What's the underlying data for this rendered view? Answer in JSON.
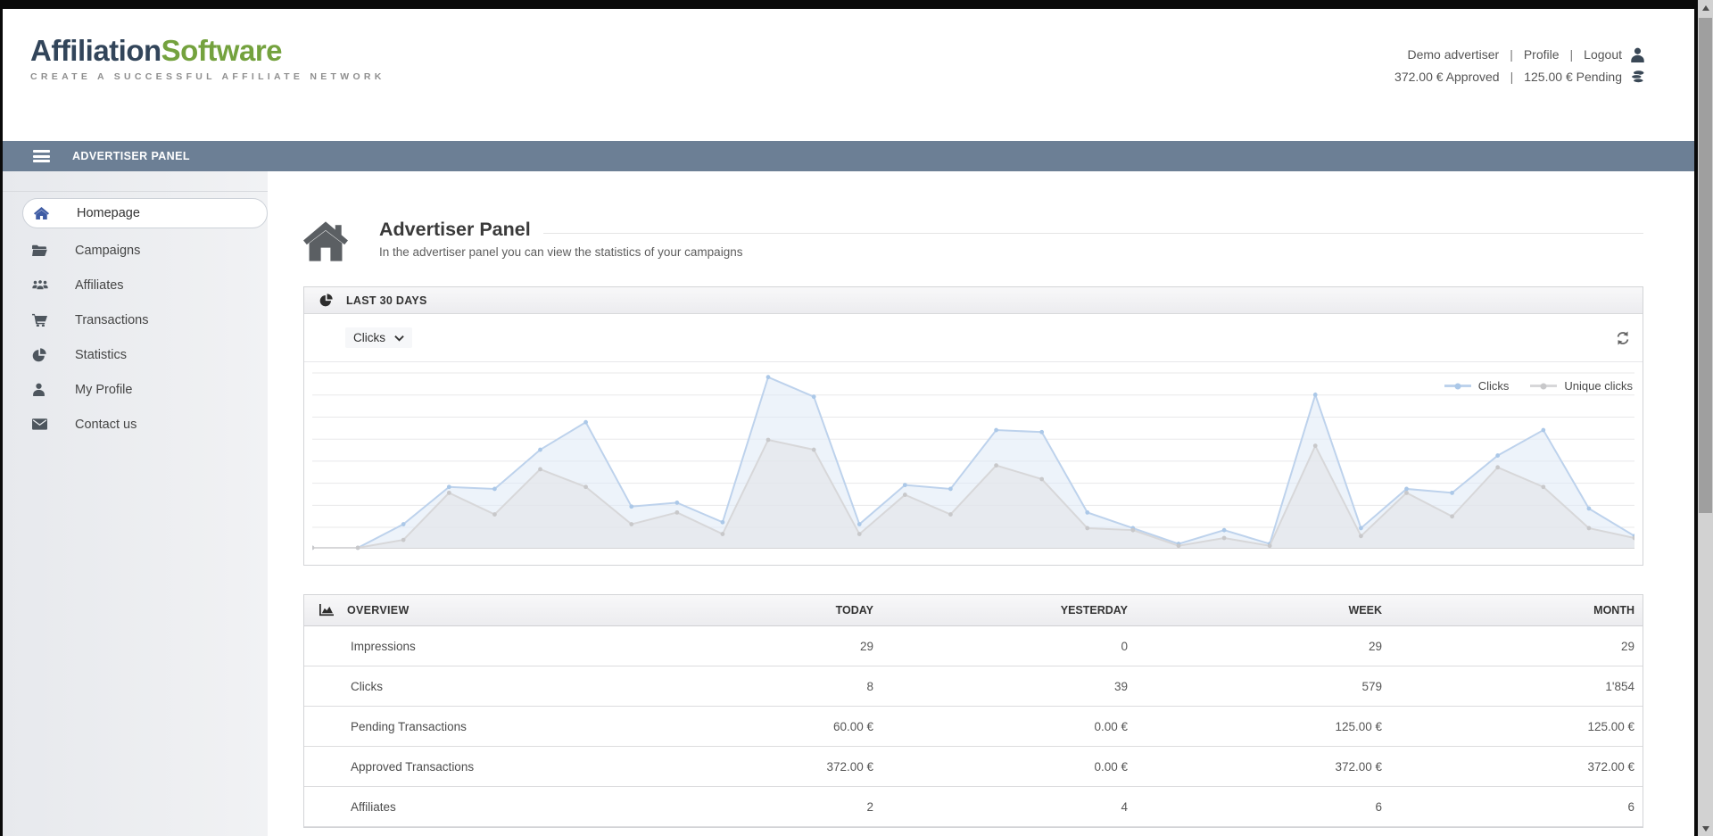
{
  "header": {
    "logo": {
      "primary": "Affiliation",
      "secondary": "Software",
      "tagline": "CREATE A SUCCESSFUL AFFILIATE NETWORK"
    },
    "separator": "|",
    "user_menu": {
      "items": [
        {
          "label": "Demo advertiser"
        },
        {
          "label": "Profile"
        },
        {
          "label": "Logout"
        }
      ]
    },
    "balance": {
      "approved": "372.00 € Approved",
      "pending": "125.00 € Pending"
    }
  },
  "navbar": {
    "title": "ADVERTISER PANEL"
  },
  "sidebar": {
    "items": [
      {
        "label": "Homepage",
        "icon": "home-icon",
        "active": true
      },
      {
        "label": "Campaigns",
        "icon": "folder-icon",
        "active": false
      },
      {
        "label": "Affiliates",
        "icon": "users-icon",
        "active": false
      },
      {
        "label": "Transactions",
        "icon": "cart-icon",
        "active": false
      },
      {
        "label": "Statistics",
        "icon": "pie-chart-icon",
        "active": false
      },
      {
        "label": "My Profile",
        "icon": "user-icon",
        "active": false
      },
      {
        "label": "Contact us",
        "icon": "envelope-icon",
        "active": false
      }
    ]
  },
  "page": {
    "title": "Advertiser Panel",
    "subtitle": "In the advertiser panel you can view the statistics of your campaigns"
  },
  "chart_panel": {
    "title": "LAST 30 DAYS",
    "metric_select": {
      "value": "Clicks"
    }
  },
  "chart_data": {
    "type": "area",
    "title": "LAST 30 DAYS",
    "x": [
      1,
      2,
      3,
      4,
      5,
      6,
      7,
      8,
      9,
      10,
      11,
      12,
      13,
      14,
      15,
      16,
      17,
      18,
      19,
      20,
      21,
      22,
      23,
      24,
      25,
      26,
      27,
      28,
      29,
      30
    ],
    "x_tick_labels_visible": false,
    "y_tick_labels_visible": false,
    "ylim": [
      0,
      90
    ],
    "grid": true,
    "legend_position": "top-right",
    "values_estimated_from_pixels": true,
    "series": [
      {
        "name": "Clicks",
        "color": "#bdd2ec",
        "fill": "rgba(223,234,246,0.55)",
        "point_color": "#abc8e8",
        "values": [
          0,
          0,
          12,
          31,
          30,
          50,
          64,
          21,
          23,
          13,
          87,
          77,
          12,
          32,
          30,
          60,
          59,
          18,
          10,
          2,
          9,
          2,
          78,
          10,
          30,
          28,
          47,
          60,
          20,
          6
        ]
      },
      {
        "name": "Unique clicks",
        "color": "#d7d7d9",
        "fill": "rgba(226,228,231,0.6)",
        "point_color": "#c8c8ca",
        "values": [
          0,
          0,
          4,
          28,
          17,
          40,
          31,
          12,
          18,
          7,
          55,
          50,
          7,
          27,
          17,
          42,
          35,
          10,
          9,
          1,
          5,
          1,
          52,
          6,
          28,
          16,
          41,
          31,
          10,
          5
        ]
      }
    ]
  },
  "overview": {
    "title": "OVERVIEW",
    "columns": [
      "TODAY",
      "YESTERDAY",
      "WEEK",
      "MONTH"
    ],
    "rows": [
      {
        "label": "Impressions",
        "values": [
          "29",
          "0",
          "29",
          "29"
        ]
      },
      {
        "label": "Clicks",
        "values": [
          "8",
          "39",
          "579",
          "1'854"
        ]
      },
      {
        "label": "Pending Transactions",
        "values": [
          "60.00 €",
          "0.00 €",
          "125.00 €",
          "125.00 €"
        ]
      },
      {
        "label": "Approved Transactions",
        "values": [
          "372.00 €",
          "0.00 €",
          "372.00 €",
          "372.00 €"
        ]
      },
      {
        "label": "Affiliates",
        "values": [
          "2",
          "4",
          "6",
          "6"
        ]
      }
    ]
  },
  "colors": {
    "navbar": "#6c7f95",
    "logo_primary": "#32455a",
    "logo_secondary": "#74a23e",
    "active_icon": "#3f5ca4",
    "sidebar_icon": "#4e565e",
    "clicks_line": "#bdd2ec",
    "unique_clicks_line": "#d7d7d9"
  }
}
